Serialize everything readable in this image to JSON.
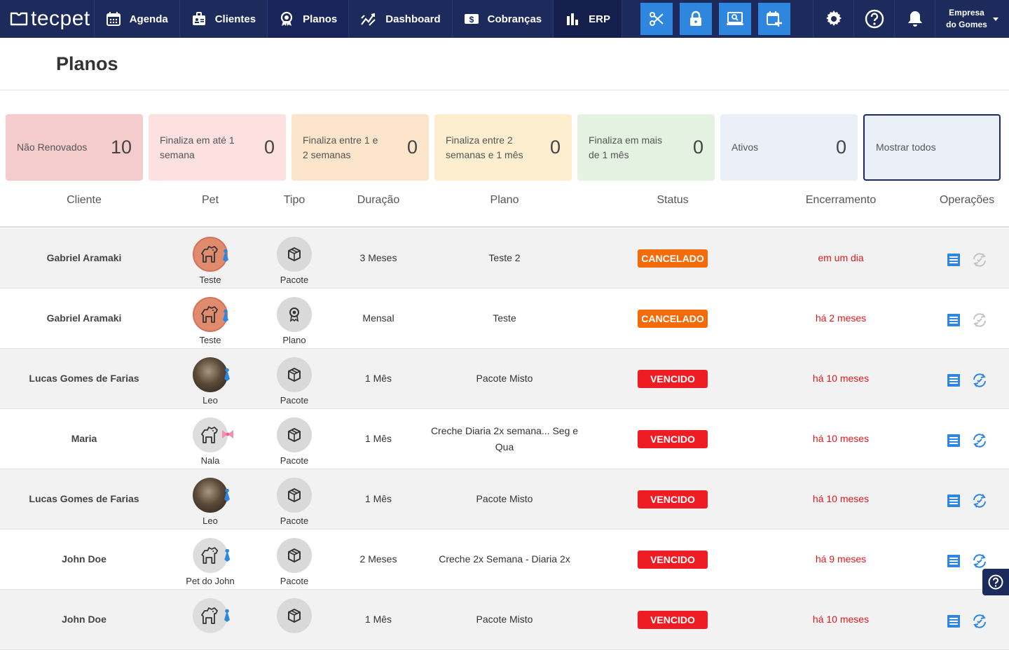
{
  "brand": {
    "name": "tecpet"
  },
  "nav": {
    "items": [
      {
        "label": "Agenda",
        "icon": "calendar-icon"
      },
      {
        "label": "Clientes",
        "icon": "contacts-icon"
      },
      {
        "label": "Planos",
        "icon": "award-icon"
      },
      {
        "label": "Dashboard",
        "icon": "chart-line-icon"
      },
      {
        "label": "Cobranças",
        "icon": "dollar-icon"
      },
      {
        "label": "ERP",
        "icon": "bar-chart-icon"
      }
    ],
    "company": {
      "line1": "Empresa",
      "line2": "do Gomes"
    }
  },
  "page": {
    "title": "Planos"
  },
  "filters": [
    {
      "label": "Não Renovados",
      "count": "10"
    },
    {
      "label": "Finaliza em até 1 semana",
      "count": "0"
    },
    {
      "label": "Finaliza entre 1 e 2 semanas",
      "count": "0"
    },
    {
      "label": "Finaliza entre 2 semanas e 1 mês",
      "count": "0"
    },
    {
      "label": "Finaliza em mais de 1 mês",
      "count": "0"
    },
    {
      "label": "Ativos",
      "count": "0"
    },
    {
      "label": "Mostrar todos",
      "count": ""
    }
  ],
  "table": {
    "headers": {
      "cliente": "Cliente",
      "pet": "Pet",
      "tipo": "Tipo",
      "duracao": "Duração",
      "plano": "Plano",
      "status": "Status",
      "encerramento": "Encerramento",
      "operacoes": "Operações"
    },
    "rows": [
      {
        "client": "Gabriel Aramaki",
        "pet": "Teste",
        "type": "Pacote",
        "duration": "3 Meses",
        "plan": "Teste 2",
        "status": "CANCELADO",
        "end": "em um dia"
      },
      {
        "client": "Gabriel Aramaki",
        "pet": "Teste",
        "type": "Plano",
        "duration": "Mensal",
        "plan": "Teste",
        "status": "CANCELADO",
        "end": "há 2 meses"
      },
      {
        "client": "Lucas Gomes de Farias",
        "pet": "Leo",
        "type": "Pacote",
        "duration": "1 Mês",
        "plan": "Pacote Misto",
        "status": "VENCIDO",
        "end": "há 10 meses"
      },
      {
        "client": "Maria",
        "pet": "Nala",
        "type": "Pacote",
        "duration": "1 Mês",
        "plan": "Creche Diaria 2x semana... Seg e Qua",
        "status": "VENCIDO",
        "end": "há 10 meses"
      },
      {
        "client": "Lucas Gomes de Farias",
        "pet": "Leo",
        "type": "Pacote",
        "duration": "1 Mês",
        "plan": "Pacote Misto",
        "status": "VENCIDO",
        "end": "há 10 meses"
      },
      {
        "client": "John Doe",
        "pet": "Pet do John",
        "type": "Pacote",
        "duration": "2 Meses",
        "plan": "Creche 2x Semana - Diaria 2x",
        "status": "VENCIDO",
        "end": "há 9 meses"
      },
      {
        "client": "John Doe",
        "pet": "",
        "type": "",
        "duration": "1 Mês",
        "plan": "Pacote Misto",
        "status": "VENCIDO",
        "end": "há 10 meses"
      }
    ]
  },
  "colors": {
    "nav": "#1c2a5c",
    "quick": "#2e86de",
    "cancelado": "#f36c0c",
    "vencido": "#ee1d24",
    "end": "#e0191e"
  }
}
